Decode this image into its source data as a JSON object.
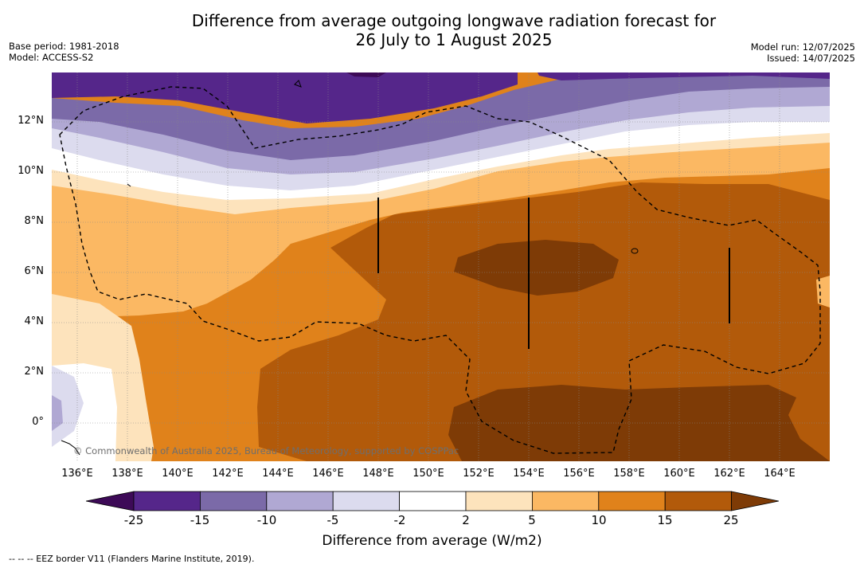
{
  "title_line1": "Difference from average outgoing longwave radiation forecast for",
  "title_line2": "26 July to 1 August 2025",
  "base_period": "Base period: 1981-2018",
  "model": "Model: ACCESS-S2",
  "model_run": "Model run: 12/07/2025",
  "issued": "Issued: 14/07/2025",
  "copyright": "© Commonwealth of Australia 2025, Bureau of Meteorology, supported by COSPPac",
  "lat_labels": [
    "12°N",
    "10°N",
    "8°N",
    "6°N",
    "4°N",
    "2°N",
    "0°"
  ],
  "lon_labels": [
    "136°E",
    "138°E",
    "140°E",
    "142°E",
    "144°E",
    "146°E",
    "148°E",
    "150°E",
    "152°E",
    "154°E",
    "156°E",
    "158°E",
    "160°E",
    "162°E",
    "164°E"
  ],
  "colorbar": {
    "label": "Difference from average (W/m2)",
    "ticks": [
      "-25",
      "-15",
      "-10",
      "-5",
      "-2",
      "2",
      "5",
      "10",
      "15",
      "25"
    ],
    "colors": [
      "#3d0a57",
      "#55268a",
      "#7b6aa8",
      "#b0a8d3",
      "#dcdbee",
      "#ffffff",
      "#fde3bc",
      "#fbb863",
      "#e0821b",
      "#b25a0a",
      "#7e3b06"
    ]
  },
  "footnote": "--  --  -- EEZ border V11 (Flanders Marine Institute, 2019)."
}
